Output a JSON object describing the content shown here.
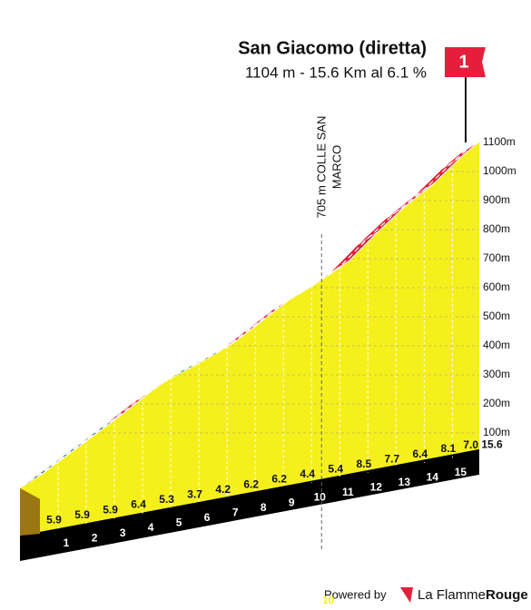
{
  "chart_data": {
    "type": "profile",
    "title": "San Giacomo (diretta)",
    "subtitle": "1104 m - 15.6 Km al 6.1 %",
    "flag_label": "1",
    "x": [
      0,
      1,
      2,
      3,
      4,
      5,
      6,
      7,
      8,
      9,
      10,
      11,
      12,
      13,
      14,
      15,
      15.6
    ],
    "elevation": [
      160,
      219,
      278,
      337,
      401,
      454,
      491,
      533,
      595,
      657,
      701,
      755,
      840,
      917,
      981,
      1062,
      1104
    ],
    "segments": {
      "values": [
        5.9,
        5.9,
        5.9,
        6.4,
        5.3,
        3.7,
        4.2,
        6.2,
        6.2,
        4.4,
        5.4,
        8.5,
        7.7,
        6.4,
        8.1,
        7.0
      ],
      "value_labels": [
        "5.9",
        "5.9",
        "5.9",
        "6.4",
        "5.3",
        "3.7",
        "4.2",
        "6.2",
        "6.2",
        "4.4",
        "5.4",
        "8.5",
        "7.7",
        "6.4",
        "8.1",
        "7.0"
      ],
      "colors": [
        "#1d5d8a",
        "#1d5d8a",
        "#1d5d8a",
        "#e51f3b",
        "#1d5d8a",
        "#6cc13a",
        "#1d5d8a",
        "#e51f3b",
        "#e51f3b",
        "#1d5d8a",
        "#e51f3b",
        "#e51f3b",
        "#e51f3b",
        "#e51f3b",
        "#e51f3b",
        "#e51f3b"
      ]
    },
    "face_color": "#f5f01c",
    "xlim": [
      0,
      15.6
    ],
    "ylim": [
      0,
      1100
    ],
    "yticks": [
      {
        "value": 100,
        "label": "100m"
      },
      {
        "value": 200,
        "label": "200m"
      },
      {
        "value": 300,
        "label": "300m"
      },
      {
        "value": 400,
        "label": "400m"
      },
      {
        "value": 500,
        "label": "500m"
      },
      {
        "value": 600,
        "label": "600m"
      },
      {
        "value": 700,
        "label": "700m"
      },
      {
        "value": 800,
        "label": "800m"
      },
      {
        "value": 900,
        "label": "900m"
      },
      {
        "value": 1000,
        "label": "1000m"
      },
      {
        "value": 1100,
        "label": "1100m"
      }
    ],
    "grid": true,
    "annotation": {
      "x": 10,
      "lines": [
        "705 m COLLE SAN",
        "MARCO"
      ]
    }
  },
  "footer": {
    "powered_by": "Powered by",
    "brand": "La Flamme",
    "brand_bold": "Rouge",
    "marker": "10"
  }
}
